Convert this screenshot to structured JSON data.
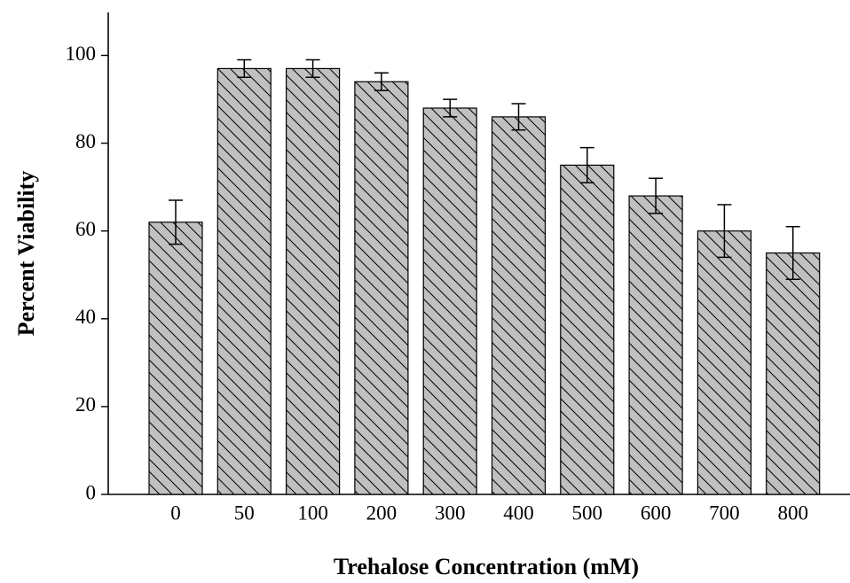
{
  "chart_data": {
    "type": "bar",
    "categories": [
      "0",
      "50",
      "100",
      "200",
      "300",
      "400",
      "500",
      "600",
      "700",
      "800"
    ],
    "values": [
      62,
      97,
      97,
      94,
      88,
      86,
      75,
      68,
      60,
      55
    ],
    "errors": [
      5,
      2,
      2,
      2,
      2,
      3,
      4,
      4,
      6,
      6
    ],
    "xlabel": "Trehalose Concentration (mM)",
    "ylabel": "Percent Viability",
    "ylim": [
      0,
      110
    ],
    "yticks": [
      0,
      20,
      40,
      60,
      80,
      100
    ],
    "grid": false,
    "legend": "none",
    "bar_fill": "#c0c0c0",
    "bar_hatch": "diagonal-back-slash"
  }
}
